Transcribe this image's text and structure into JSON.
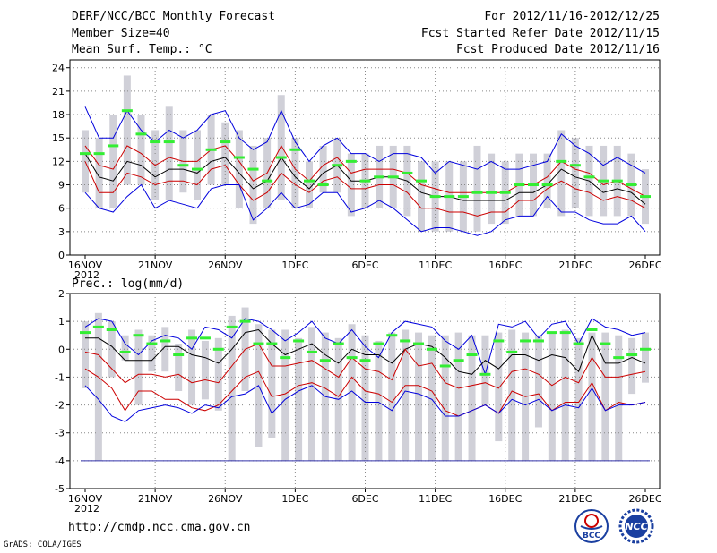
{
  "header": {
    "title": "DERF/NCC/BCC Monthly Forecast",
    "member_size": "Member Size=40",
    "range": "For 2012/11/16-2012/12/25",
    "started": "Fcst Started Refer Date 2012/11/15",
    "produced": "Fcst Produced Date 2012/11/16"
  },
  "footer": {
    "url": "http://cmdp.ncc.cma.gov.cn",
    "grads": "GrADS: COLA/IGES"
  },
  "logos": {
    "bcc": "BCC",
    "ncc": "NCC"
  },
  "colors": {
    "bar": "#d0d0d8",
    "median": "#000000",
    "quartile": "#cc0000",
    "extreme": "#0000dd",
    "obs": "#33ee33",
    "grid": "#888888"
  },
  "chart_data": [
    {
      "type": "line",
      "title": "Mean Surf. Temp.: °C",
      "ylabel": "°C",
      "ylim": [
        0,
        25
      ],
      "yticks": [
        0,
        3,
        6,
        9,
        12,
        15,
        18,
        21,
        24
      ],
      "xtick_labels": [
        "16NOV",
        "21NOV",
        "26NOV",
        "1DEC",
        "6DEC",
        "11DEC",
        "16DEC",
        "21DEC",
        "26DEC"
      ],
      "xtick_year": "2012",
      "x_days": 41,
      "series": [
        {
          "name": "max",
          "values": [
            19,
            15,
            15,
            18.5,
            16,
            14.5,
            16,
            15,
            16,
            18,
            18.5,
            15,
            13.5,
            14.5,
            18.5,
            14.5,
            12,
            14,
            15,
            13,
            13,
            12,
            13,
            13,
            12.5,
            10.5,
            12,
            11.5,
            11,
            12,
            11,
            11,
            11.5,
            12,
            15.5,
            14,
            13,
            11.5,
            12.5,
            11.5,
            10.5
          ]
        },
        {
          "name": "q75",
          "values": [
            14,
            11.5,
            11,
            14,
            13,
            11.5,
            12.5,
            12,
            12,
            13.5,
            14,
            12,
            9.5,
            10.5,
            14,
            11,
            9.5,
            11.5,
            12.5,
            10.5,
            11,
            11,
            11,
            10.5,
            9,
            8.5,
            8,
            8,
            8,
            8,
            8,
            9,
            9,
            10,
            12,
            11,
            10.5,
            9,
            9.5,
            8.5,
            7.5
          ]
        },
        {
          "name": "median",
          "values": [
            13,
            10,
            9.5,
            12,
            11.5,
            10,
            11,
            11,
            10.5,
            12,
            12.5,
            10.5,
            8.5,
            9.5,
            12.5,
            10,
            8.5,
            10.5,
            11.5,
            9.5,
            9.5,
            10,
            10,
            9.5,
            8,
            7.5,
            7.5,
            7,
            7,
            7,
            7,
            8,
            8,
            9,
            11,
            10,
            9.5,
            8,
            8.5,
            8,
            6.5
          ]
        },
        {
          "name": "q25",
          "values": [
            12,
            8,
            8,
            10.5,
            10,
            9,
            9.5,
            9.5,
            9,
            11,
            11.5,
            9,
            7,
            8,
            10.5,
            9,
            8,
            9.5,
            10,
            8.5,
            8.5,
            9,
            9,
            8,
            6,
            6,
            5.5,
            5.5,
            5,
            5.5,
            5.5,
            7,
            7,
            8.5,
            9.5,
            8.5,
            8,
            7,
            7.5,
            7,
            6
          ]
        },
        {
          "name": "min",
          "values": [
            8,
            6,
            5.5,
            7.5,
            9,
            6,
            7,
            6.5,
            6,
            8.5,
            9,
            9,
            4.5,
            6,
            8,
            6,
            6.5,
            8,
            8,
            5.5,
            6,
            7,
            6,
            4.5,
            3,
            3.5,
            3.5,
            3,
            2.5,
            3,
            4.5,
            5,
            5,
            7.5,
            5.5,
            5.5,
            4.5,
            4,
            4,
            5,
            3
          ]
        },
        {
          "name": "obs",
          "values": [
            13,
            13,
            14,
            18.5,
            15.5,
            14.5,
            14.5,
            11.5,
            11,
            13.5,
            14.5,
            12.5,
            11,
            9.5,
            12.5,
            13.5,
            9.5,
            9,
            11.5,
            12,
            9.5,
            10,
            10,
            10.5,
            9.5,
            7.5,
            7.5,
            7.5,
            8,
            8,
            8,
            9,
            9,
            9,
            12,
            11.5,
            10,
            9.5,
            9.5,
            9,
            7.5
          ]
        }
      ],
      "bars": {
        "low": [
          8,
          6,
          6,
          9,
          9,
          7,
          7,
          8,
          7,
          9,
          9,
          6,
          4,
          6,
          7,
          6,
          6,
          8,
          8,
          5,
          6,
          6,
          6,
          5,
          3,
          3,
          3,
          3,
          3,
          4,
          4,
          5,
          5,
          6,
          5,
          6,
          5,
          5,
          5,
          5,
          4
        ],
        "high": [
          16,
          15,
          18,
          23,
          18,
          16,
          19,
          16,
          16,
          18,
          17,
          16,
          14,
          15,
          20.5,
          15,
          12,
          14,
          15,
          13,
          13,
          14,
          14,
          14,
          12,
          12,
          12,
          12,
          14,
          13,
          12,
          13,
          13,
          13,
          16,
          15,
          14,
          14,
          14,
          13,
          11
        ]
      }
    },
    {
      "type": "line",
      "title": "Prec.: log(mm/d)",
      "ylabel": "log(mm/d)",
      "ylim": [
        -5,
        2
      ],
      "yticks": [
        -5,
        -4,
        -3,
        -2,
        -1,
        0,
        1,
        2
      ],
      "xtick_labels": [
        "16NOV",
        "21NOV",
        "26NOV",
        "1DEC",
        "6DEC",
        "11DEC",
        "16DEC",
        "21DEC",
        "26DEC"
      ],
      "xtick_year": "2012",
      "x_days": 41,
      "baseline": -4,
      "series": [
        {
          "name": "max",
          "values": [
            0.8,
            1.1,
            1.0,
            0.2,
            -0.2,
            0.3,
            0.5,
            0.4,
            0,
            0.8,
            0.7,
            0.4,
            1.1,
            1.0,
            0.7,
            0.3,
            0.6,
            1.0,
            0.4,
            0.2,
            0.7,
            0.1,
            -0.3,
            0.6,
            1.0,
            0.9,
            0.8,
            0.3,
            0,
            0.5,
            -0.9,
            0.9,
            0.8,
            1.0,
            0.4,
            0.9,
            1.0,
            0.2,
            1.1,
            0.8,
            0.7,
            0.5,
            0.6
          ]
        },
        {
          "name": "median",
          "values": [
            0.4,
            0.4,
            0.1,
            -0.4,
            -0.4,
            -0.4,
            0.1,
            0.1,
            -0.2,
            -0.3,
            -0.5,
            0,
            0.6,
            0.7,
            0.2,
            -0.2,
            0,
            0.2,
            -0.2,
            -0.5,
            0,
            -0.2,
            -0.2,
            -0.5,
            0,
            0.2,
            0.1,
            -0.3,
            -0.8,
            -0.9,
            -0.4,
            -0.7,
            -0.2,
            -0.2,
            -0.4,
            -0.2,
            -0.3,
            -0.8,
            0.5,
            -0.5,
            -0.5,
            -0.3,
            -0.5
          ]
        },
        {
          "name": "q25",
          "values": [
            -0.1,
            -0.2,
            -0.7,
            -1.2,
            -0.9,
            -0.9,
            -1,
            -0.9,
            -1.2,
            -1.1,
            -1.2,
            -0.6,
            0,
            0.2,
            -0.6,
            -0.6,
            -0.5,
            -0.4,
            -0.7,
            -1,
            -0.3,
            -0.7,
            -0.8,
            -1.1,
            0,
            -0.6,
            -0.5,
            -1.2,
            -1.4,
            -1.3,
            -1.2,
            -1.4,
            -0.8,
            -0.7,
            -0.9,
            -1.3,
            -1,
            -1.2,
            -0.3,
            -1,
            -1,
            -0.9,
            -0.8
          ]
        },
        {
          "name": "q75",
          "values": [
            -0.7,
            -1.0,
            -1.4,
            -2.2,
            -1.5,
            -1.5,
            -1.8,
            -1.8,
            -2.1,
            -2.2,
            -2.0,
            -1.5,
            -1.0,
            -0.8,
            -1.7,
            -1.6,
            -1.3,
            -1.2,
            -1.4,
            -1.7,
            -1.0,
            -1.5,
            -1.6,
            -1.9,
            -1.3,
            -1.3,
            -1.5,
            -2.2,
            -2.4,
            -2.2,
            -2.0,
            -2.3,
            -1.5,
            -1.7,
            -1.6,
            -2.2,
            -1.9,
            -1.9,
            -1.2,
            -2.2,
            -1.9,
            -2.0,
            -1.9
          ]
        },
        {
          "name": "min",
          "values": [
            -1.3,
            -1.8,
            -2.4,
            -2.6,
            -2.2,
            -2.1,
            -2.0,
            -2.1,
            -2.3,
            -2.0,
            -2.1,
            -1.7,
            -1.6,
            -1.3,
            -2.3,
            -1.8,
            -1.5,
            -1.3,
            -1.7,
            -1.8,
            -1.5,
            -1.9,
            -1.9,
            -2.2,
            -1.5,
            -1.6,
            -1.8,
            -2.4,
            -2.4,
            -2.2,
            -2.0,
            -2.3,
            -1.8,
            -2.0,
            -1.8,
            -2.2,
            -2.0,
            -2.1,
            -1.4,
            -2.2,
            -2.0,
            -2.0,
            -1.9
          ]
        },
        {
          "name": "obs",
          "values": [
            0.6,
            0.8,
            0.7,
            -0.1,
            0.5,
            0.2,
            0.3,
            -0.2,
            0.4,
            0.4,
            0,
            0.8,
            1.0,
            0.2,
            0.2,
            -0.3,
            0.3,
            -0.1,
            -0.4,
            0.2,
            -0.3,
            -0.4,
            0.2,
            0.5,
            0.3,
            0.2,
            0,
            -0.6,
            -0.4,
            -0.2,
            -0.9,
            0.3,
            -0.1,
            0.3,
            0.3,
            0.6,
            0.6,
            0.2,
            0.7,
            0.2,
            -0.3,
            -0.2,
            0
          ]
        }
      ],
      "bars": {
        "low": [
          -1.4,
          -4,
          -1.0,
          -0.4,
          -2.0,
          -0.8,
          -0.8,
          -1.5,
          -2.0,
          -1.8,
          -2.2,
          -4,
          -1.5,
          -3.5,
          -3.2,
          -4,
          -4,
          -4,
          -4,
          -4,
          -4,
          -4,
          -4,
          -4,
          -4,
          -4,
          -4,
          -4,
          -4,
          -4,
          -2.0,
          -3.3,
          -4,
          -4,
          -2.8,
          -4,
          -4,
          -4,
          -4,
          -4,
          -4,
          -1.6,
          -1.2
        ],
        "high": [
          1.0,
          1.3,
          1.0,
          0.5,
          0.7,
          0.5,
          0.8,
          0.2,
          0.7,
          0.3,
          0.4,
          1.2,
          1.5,
          0.9,
          0.7,
          0.7,
          0.4,
          0.8,
          0.6,
          0.4,
          0.9,
          0.5,
          0.3,
          0.6,
          0.7,
          0.6,
          0.5,
          0.5,
          0.6,
          0.5,
          0.5,
          0.6,
          0.7,
          0.6,
          0.5,
          0.6,
          0.7,
          0.4,
          0.6,
          0.6,
          0.5,
          0.4,
          0.6
        ]
      }
    }
  ]
}
